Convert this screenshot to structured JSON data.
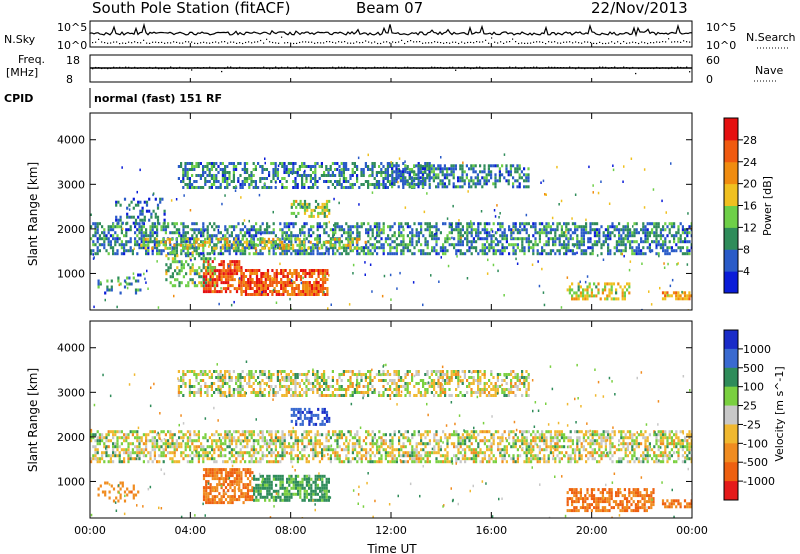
{
  "header": {
    "title": "South Pole Station (fitACF)",
    "beam": "Beam 07",
    "date": "22/Nov/2013"
  },
  "top_panels": {
    "nsky_label": "N.Sky",
    "nsky_ticks": [
      "10^5",
      "10^0"
    ],
    "nsearch_label": "N.Search",
    "nsearch_ticks": [
      "10^5",
      "10^0"
    ],
    "freq_label_1": "Freq.",
    "freq_label_2": "[MHz]",
    "freq_ticks": [
      "18",
      "8"
    ],
    "nave_label": "Nave",
    "nave_ticks": [
      "60",
      "0"
    ],
    "cpid_label": "CPID",
    "cpid_value": "normal (fast) 151 RF"
  },
  "colors": {
    "power_scale": [
      "#0a1cd8",
      "#2a5bc8",
      "#2f8c5a",
      "#6ecf48",
      "#f0c020",
      "#f08c10",
      "#f05a10",
      "#e51010"
    ],
    "velocity_scale": [
      "#1a2cc8",
      "#3a6ad0",
      "#2f8c5a",
      "#7ad040",
      "#c8c8c8",
      "#f0b830",
      "#f08c20",
      "#ee6010",
      "#e51a1a"
    ]
  },
  "chart_data": [
    {
      "type": "heatmap",
      "title": "Power",
      "ylabel": "Slant Range [km]",
      "xlabel": "Time UT",
      "x_ticks": [
        "00:00",
        "04:00",
        "08:00",
        "12:00",
        "16:00",
        "20:00",
        "00:00"
      ],
      "x_range_hours": [
        0,
        24
      ],
      "y_ticks": [
        1000,
        2000,
        3000,
        4000
      ],
      "ylim": [
        180,
        4600
      ],
      "colorbar": {
        "label": "Power [dB]",
        "ticks": [
          "4",
          "8",
          "12",
          "16",
          "20",
          "24",
          "28"
        ],
        "range": [
          0,
          30
        ]
      },
      "regions": [
        {
          "t0": 0.0,
          "t1": 24.0,
          "r0": 1450,
          "r1": 2150,
          "value": 8,
          "density": 0.55
        },
        {
          "t0": 2.0,
          "t1": 11.0,
          "r0": 1550,
          "r1": 1800,
          "value": 16,
          "density": 0.45
        },
        {
          "t0": 3.5,
          "t1": 13.5,
          "r0": 2900,
          "r1": 3500,
          "value": 8,
          "density": 0.5
        },
        {
          "t0": 12.0,
          "t1": 17.5,
          "r0": 2950,
          "r1": 3450,
          "value": 8,
          "density": 0.55
        },
        {
          "t0": 4.5,
          "t1": 6.0,
          "r0": 600,
          "r1": 1300,
          "value": 26,
          "density": 0.7
        },
        {
          "t0": 6.0,
          "t1": 9.5,
          "r0": 550,
          "r1": 1100,
          "value": 24,
          "density": 0.75
        },
        {
          "t0": 3.0,
          "t1": 5.0,
          "r0": 700,
          "r1": 1500,
          "value": 12,
          "density": 0.4
        },
        {
          "t0": 8.0,
          "t1": 9.5,
          "r0": 2250,
          "r1": 2650,
          "value": 14,
          "density": 0.55
        },
        {
          "t0": 19.0,
          "t1": 21.5,
          "r0": 400,
          "r1": 800,
          "value": 16,
          "density": 0.55
        },
        {
          "t0": 22.8,
          "t1": 24.0,
          "r0": 400,
          "r1": 600,
          "value": 20,
          "density": 0.7
        },
        {
          "t0": 1.0,
          "t1": 3.0,
          "r0": 2100,
          "r1": 2700,
          "value": 6,
          "density": 0.3
        },
        {
          "t0": 0.3,
          "t1": 2.0,
          "r0": 550,
          "r1": 1000,
          "value": 8,
          "density": 0.25
        }
      ]
    },
    {
      "type": "heatmap",
      "title": "Velocity",
      "ylabel": "Slant Range [km]",
      "xlabel": "Time UT",
      "x_ticks": [
        "00:00",
        "04:00",
        "08:00",
        "12:00",
        "16:00",
        "20:00",
        "00:00"
      ],
      "x_range_hours": [
        0,
        24
      ],
      "y_ticks": [
        1000,
        2000,
        3000,
        4000
      ],
      "ylim": [
        180,
        4600
      ],
      "colorbar": {
        "label": "Velocity [m s^-1]",
        "ticks": [
          "1000",
          "500",
          "100",
          "25",
          "-25",
          "-100",
          "-500",
          "-1000"
        ],
        "range": [
          -1000,
          1000
        ]
      },
      "regions": [
        {
          "t0": 0.0,
          "t1": 24.0,
          "r0": 1450,
          "r1": 2150,
          "value": 0,
          "density": 0.55
        },
        {
          "t0": 3.5,
          "t1": 17.5,
          "r0": 2900,
          "r1": 3500,
          "value": 0,
          "density": 0.5
        },
        {
          "t0": 4.5,
          "t1": 6.5,
          "r0": 500,
          "r1": 1300,
          "value": -300,
          "density": 0.7
        },
        {
          "t0": 6.5,
          "t1": 9.5,
          "r0": 550,
          "r1": 1150,
          "value": 150,
          "density": 0.7
        },
        {
          "t0": 8.0,
          "t1": 9.5,
          "r0": 2250,
          "r1": 2650,
          "value": 700,
          "density": 0.55
        },
        {
          "t0": 19.0,
          "t1": 22.5,
          "r0": 350,
          "r1": 850,
          "value": -300,
          "density": 0.6
        },
        {
          "t0": 22.8,
          "t1": 24.0,
          "r0": 400,
          "r1": 600,
          "value": -300,
          "density": 0.7
        },
        {
          "t0": 0.3,
          "t1": 2.0,
          "r0": 550,
          "r1": 1000,
          "value": -200,
          "density": 0.25
        }
      ]
    }
  ]
}
